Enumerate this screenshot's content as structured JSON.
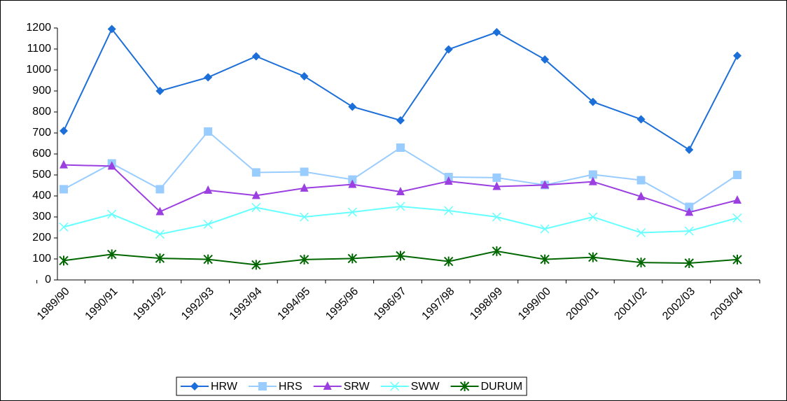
{
  "chart_data": {
    "type": "line",
    "categories": [
      "1989/90",
      "1990/91",
      "1991/92",
      "1992/93",
      "1993/94",
      "1994/95",
      "1995/96",
      "1996/97",
      "1997/98",
      "1998/99",
      "1999/00",
      "2000/01",
      "2001/02",
      "2002/03",
      "2003/04"
    ],
    "series": [
      {
        "name": "HRW",
        "color": "#1c6fd8",
        "marker": "diamond",
        "values": [
          710,
          1195,
          900,
          965,
          1065,
          970,
          825,
          760,
          1098,
          1180,
          1050,
          848,
          765,
          620,
          1068
        ]
      },
      {
        "name": "HRS",
        "color": "#99ccff",
        "marker": "square",
        "values": [
          432,
          555,
          432,
          707,
          512,
          515,
          478,
          630,
          490,
          487,
          452,
          502,
          475,
          348,
          500
        ]
      },
      {
        "name": "SRW",
        "color": "#9b3fe0",
        "marker": "triangle",
        "values": [
          548,
          542,
          325,
          427,
          402,
          437,
          455,
          420,
          470,
          445,
          452,
          468,
          397,
          322,
          380
        ]
      },
      {
        "name": "SWW",
        "color": "#66ffff",
        "marker": "x",
        "values": [
          252,
          313,
          218,
          265,
          345,
          300,
          323,
          350,
          330,
          300,
          243,
          300,
          225,
          233,
          295
        ]
      },
      {
        "name": "DURUM",
        "color": "#006600",
        "marker": "star",
        "values": [
          92,
          122,
          103,
          98,
          72,
          97,
          102,
          115,
          88,
          137,
          98,
          108,
          83,
          80,
          97
        ]
      }
    ],
    "ylim": [
      0,
      1200
    ],
    "yticks": [
      0,
      100,
      200,
      300,
      400,
      500,
      600,
      700,
      800,
      900,
      1000,
      1100,
      1200
    ],
    "legend": "bottom",
    "grid": false
  }
}
